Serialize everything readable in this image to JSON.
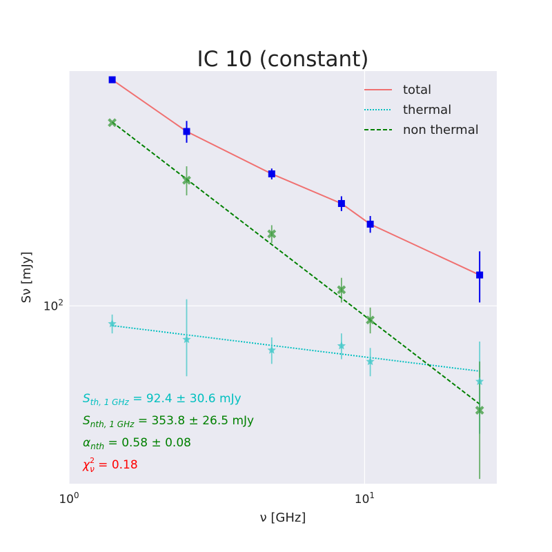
{
  "chart_data": {
    "type": "scatter",
    "title": "IC 10 (constant)",
    "xlabel": "ν [GHz]",
    "ylabel": "Sν [mJy]",
    "xscale": "log",
    "yscale": "log",
    "xlim": [
      1.0,
      28.0
    ],
    "ylim": [
      35,
      400
    ],
    "grid": true,
    "legend_position": "top-right",
    "x_ticks": [
      {
        "value": 1,
        "base": "10",
        "exp": "0"
      },
      {
        "value": 10,
        "base": "10",
        "exp": "1"
      }
    ],
    "y_ticks": [
      {
        "value": 100,
        "base": "10",
        "exp": "2"
      }
    ],
    "legend": [
      {
        "label": "total",
        "color": "#f07070",
        "style": "solid"
      },
      {
        "label": "thermal",
        "color": "#00bfbf",
        "style": "dotted"
      },
      {
        "label": "non thermal",
        "color": "#008000",
        "style": "dashed"
      }
    ],
    "points": {
      "total": {
        "color": "#0000ee",
        "marker": "square",
        "x": [
          1.4,
          2.5,
          4.85,
          8.35,
          10.45,
          24.5
        ],
        "y": [
          380,
          280,
          218,
          183,
          162,
          120
        ],
        "yerr_low": [
          0,
          18,
          7,
          8,
          8,
          18
        ],
        "yerr_high": [
          0,
          18,
          7,
          8,
          8,
          18
        ]
      },
      "thermal": {
        "color": "#40c8c8",
        "marker": "star",
        "x": [
          1.4,
          2.5,
          4.85,
          8.35,
          10.45,
          24.5
        ],
        "y": [
          90,
          82,
          77,
          79,
          72,
          64
        ],
        "yerr_low": [
          5,
          16,
          6,
          6,
          6,
          17
        ],
        "yerr_high": [
          5,
          22,
          6,
          6,
          6,
          17
        ]
      },
      "nonthermal": {
        "color": "#3a9a3a",
        "marker": "x",
        "x": [
          1.4,
          2.5,
          4.85,
          8.35,
          10.45,
          24.5
        ],
        "y": [
          295,
          210,
          153,
          110,
          92,
          54
        ],
        "yerr_low": [
          0,
          18,
          8,
          8,
          7,
          18
        ],
        "yerr_high": [
          0,
          18,
          8,
          8,
          7,
          18
        ]
      }
    },
    "fit_lines": {
      "total": {
        "x": [
          1.4,
          2.5,
          4.85,
          8.35,
          10.45,
          24.5
        ],
        "y": [
          380,
          280,
          218,
          183,
          162,
          120
        ]
      },
      "thermal": {
        "x": [
          1.4,
          24.5
        ],
        "y": [
          89,
          68
        ]
      },
      "nonthermal": {
        "x": [
          1.4,
          24.5
        ],
        "y": [
          296,
          56
        ]
      }
    },
    "annotations": [
      {
        "id": "sth",
        "symbol": "S",
        "sub": "th, 1 GHz",
        "value": " = 92.4 ± 30.6 mJy",
        "color": "#00bfbf"
      },
      {
        "id": "snth",
        "symbol": "S",
        "sub": "nth, 1 GHz",
        "value": " = 353.8 ± 26.5 mJy",
        "color": "#008000"
      },
      {
        "id": "alpha",
        "symbol": "α",
        "sub": "nth",
        "value": " = 0.58 ± 0.08",
        "color": "#008000"
      },
      {
        "id": "chi",
        "symbol": "χ",
        "sup": "2",
        "sub": "ν",
        "value": " = 0.18",
        "color": "#ff0000"
      }
    ]
  }
}
